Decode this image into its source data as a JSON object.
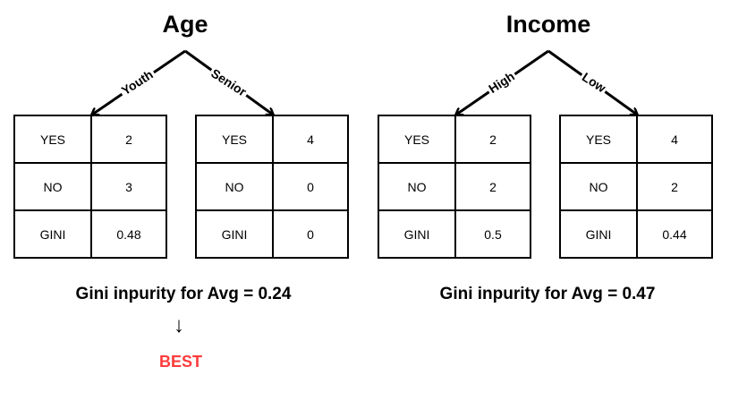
{
  "trees": [
    {
      "title": "Age",
      "branches": [
        "Youth",
        "Senior"
      ],
      "tables": [
        {
          "rows": [
            {
              "k": "YES",
              "v": "2"
            },
            {
              "k": "NO",
              "v": "3"
            },
            {
              "k": "GINI",
              "v": "0.48"
            }
          ]
        },
        {
          "rows": [
            {
              "k": "YES",
              "v": "4"
            },
            {
              "k": "NO",
              "v": "0"
            },
            {
              "k": "GINI",
              "v": "0"
            }
          ]
        }
      ],
      "result": "Gini inpurity for Avg = 0.24",
      "verdict": "BEST"
    },
    {
      "title": "Income",
      "branches": [
        "High",
        "Low"
      ],
      "tables": [
        {
          "rows": [
            {
              "k": "YES",
              "v": "2"
            },
            {
              "k": "NO",
              "v": "2"
            },
            {
              "k": "GINI",
              "v": "0.5"
            }
          ]
        },
        {
          "rows": [
            {
              "k": "YES",
              "v": "4"
            },
            {
              "k": "NO",
              "v": "2"
            },
            {
              "k": "GINI",
              "v": "0.44"
            }
          ]
        }
      ],
      "result": "Gini inpurity for Avg = 0.47"
    }
  ],
  "colors": {
    "best": "#ff3b3b",
    "ink": "#000000"
  },
  "icons": {
    "best_pointer": "down-arrow-icon"
  }
}
